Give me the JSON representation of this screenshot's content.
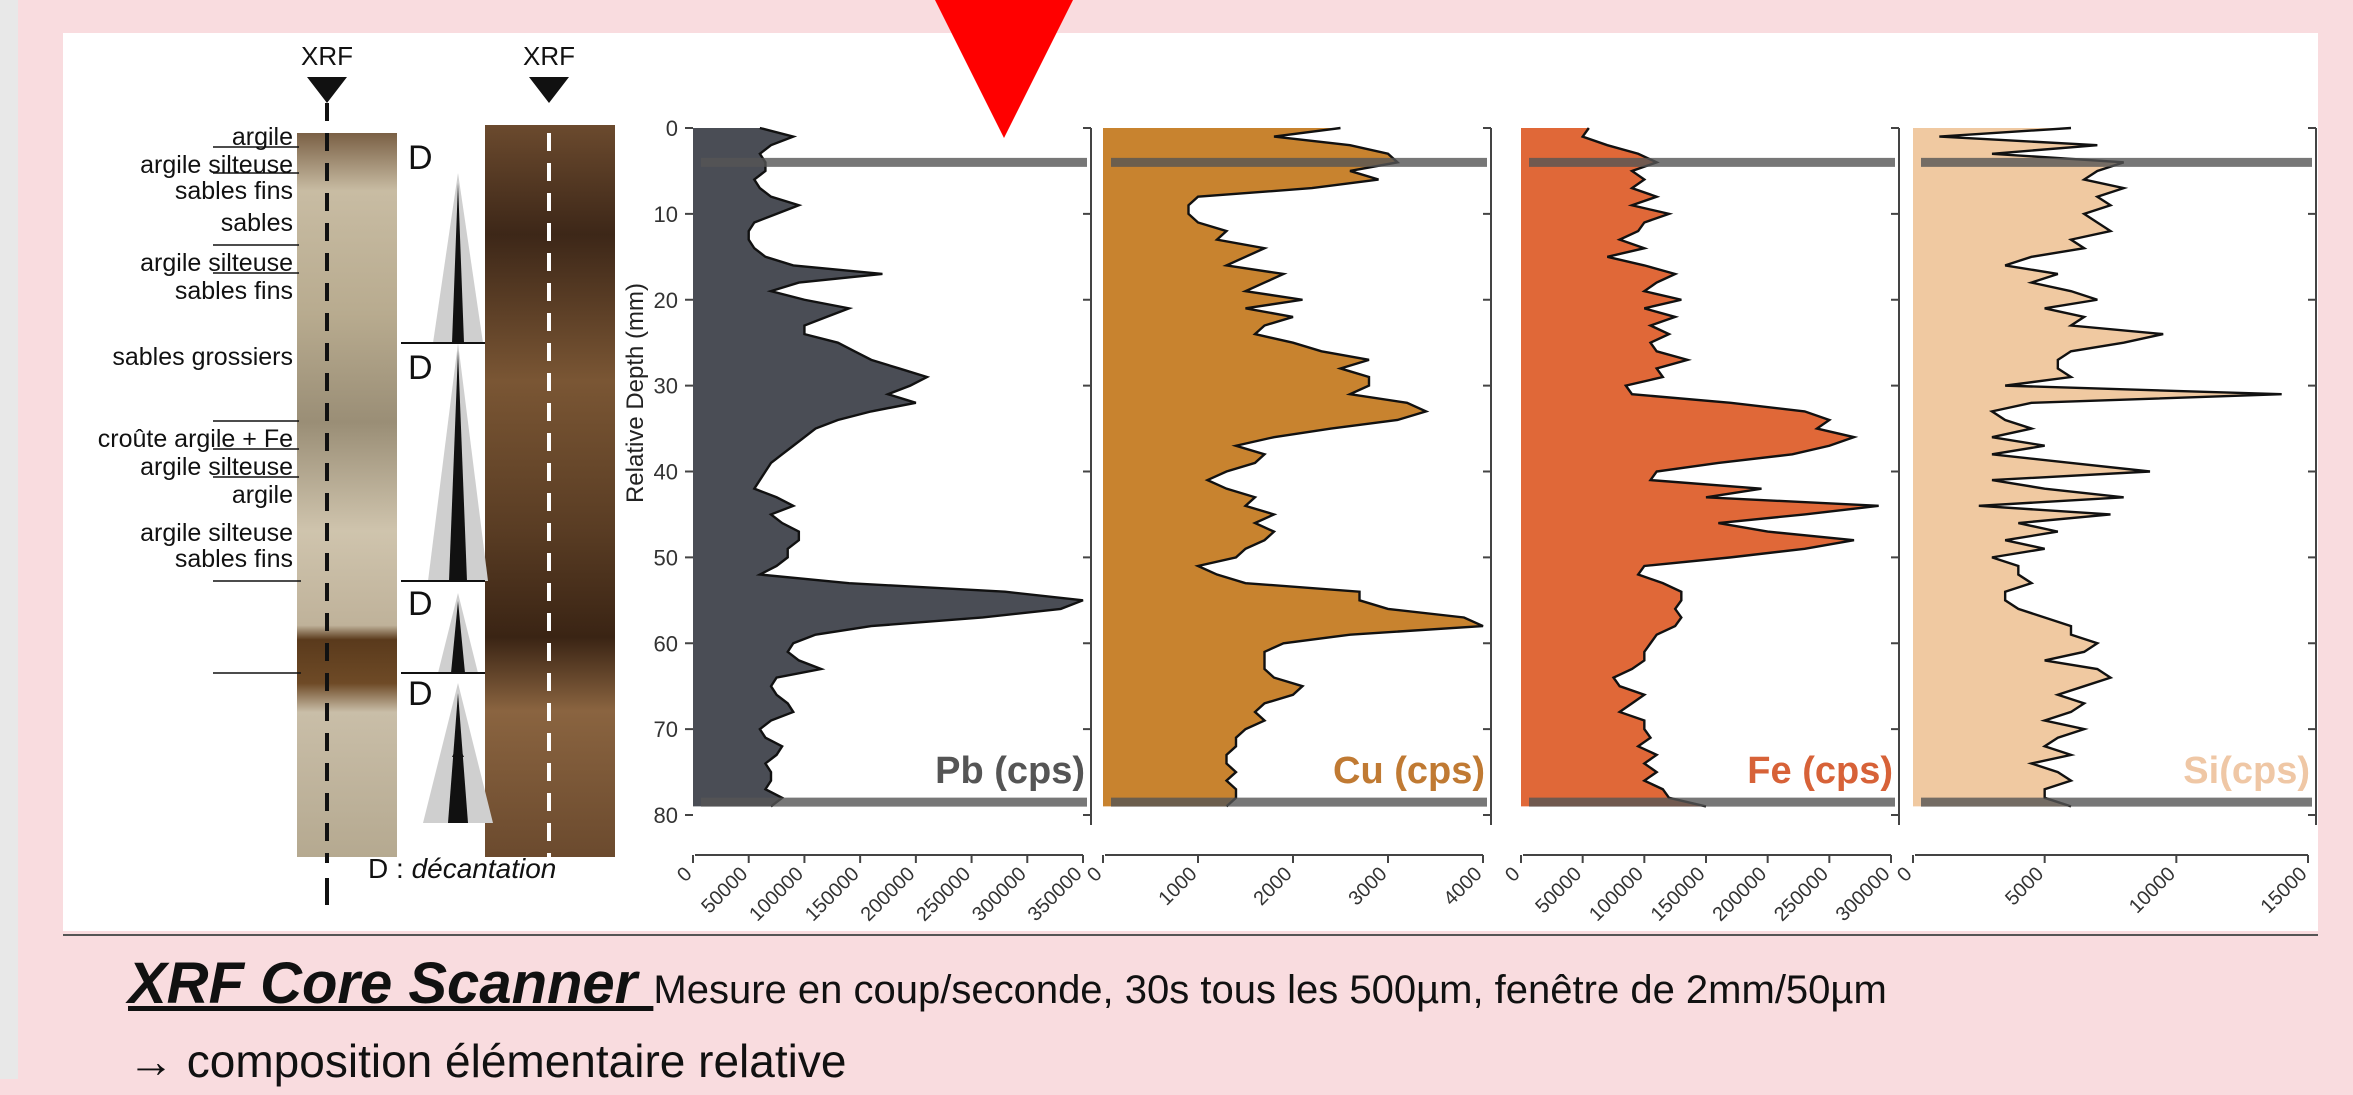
{
  "core": {
    "xrf_label_left": "XRF",
    "xrf_label_right": "XRF",
    "layers": [
      {
        "label": "argile"
      },
      {
        "label": "argile silteuse"
      },
      {
        "label": "sables fins"
      },
      {
        "label": "sables"
      },
      {
        "label": "argile silteuse"
      },
      {
        "label": "sables fins"
      },
      {
        "label": "sables grossiers"
      },
      {
        "label": "croûte argile + Fe"
      },
      {
        "label": "argile silteuse"
      },
      {
        "label": "argile"
      },
      {
        "label": "argile silteuse"
      },
      {
        "label": "sables fins"
      }
    ],
    "decantation_marks": [
      "D",
      "D",
      "D",
      "D"
    ],
    "legend_prefix": "D : ",
    "legend_term": "décantation"
  },
  "chart_data": {
    "type": "area",
    "ylabel": "Relative Depth (mm)",
    "ylim": [
      0,
      80
    ],
    "yticks": [
      0,
      10,
      20,
      30,
      40,
      50,
      60,
      70,
      80
    ],
    "reference_depths": [
      4,
      78.5
    ],
    "depth": [
      0,
      1,
      2,
      3,
      4,
      5,
      6,
      7,
      8,
      9,
      10,
      11,
      12,
      13,
      14,
      15,
      16,
      17,
      18,
      19,
      20,
      21,
      22,
      23,
      24,
      25,
      26,
      27,
      28,
      29,
      30,
      31,
      32,
      33,
      34,
      35,
      36,
      37,
      38,
      39,
      40,
      41,
      42,
      43,
      44,
      45,
      46,
      47,
      48,
      49,
      50,
      51,
      52,
      53,
      54,
      55,
      56,
      57,
      58,
      59,
      60,
      61,
      62,
      63,
      64,
      65,
      66,
      67,
      68,
      69,
      70,
      71,
      72,
      73,
      74,
      75,
      76,
      77,
      78,
      79
    ],
    "panels": [
      {
        "label": "Pb (cps)",
        "color": "#4a4d55",
        "label_color": "#555555",
        "xlim": [
          0,
          350000
        ],
        "xticks": [
          "0",
          "50000",
          "100000",
          "150000",
          "200000",
          "250000",
          "300000",
          "350000"
        ],
        "values": [
          60000,
          90000,
          70000,
          60000,
          65000,
          65000,
          55000,
          60000,
          70000,
          95000,
          75000,
          55000,
          50000,
          50000,
          55000,
          65000,
          90000,
          170000,
          95000,
          70000,
          100000,
          140000,
          120000,
          100000,
          100000,
          130000,
          145000,
          160000,
          185000,
          210000,
          195000,
          175000,
          200000,
          160000,
          130000,
          110000,
          100000,
          90000,
          80000,
          70000,
          65000,
          60000,
          55000,
          75000,
          90000,
          70000,
          80000,
          95000,
          95000,
          85000,
          85000,
          75000,
          60000,
          140000,
          280000,
          350000,
          330000,
          260000,
          160000,
          110000,
          90000,
          85000,
          95000,
          115000,
          75000,
          70000,
          75000,
          85000,
          90000,
          70000,
          60000,
          65000,
          80000,
          75000,
          65000,
          70000,
          70000,
          65000,
          80000,
          70000
        ]
      },
      {
        "label": "Cu (cps)",
        "color": "#c8832f",
        "label_color": "#c07a33",
        "xlim": [
          0,
          4000
        ],
        "xticks": [
          "0",
          "1000",
          "2000",
          "3000",
          "4000"
        ],
        "values": [
          2500,
          1800,
          2600,
          3000,
          3100,
          2600,
          2900,
          2200,
          1000,
          900,
          900,
          1000,
          1300,
          1200,
          1700,
          1500,
          1300,
          1900,
          1700,
          1500,
          2100,
          1500,
          2000,
          1700,
          1600,
          2000,
          2300,
          2800,
          2500,
          2800,
          2800,
          2600,
          3200,
          3400,
          3100,
          2400,
          1800,
          1400,
          1700,
          1600,
          1300,
          1100,
          1300,
          1600,
          1500,
          1800,
          1600,
          1800,
          1700,
          1500,
          1400,
          1000,
          1200,
          1500,
          2700,
          2700,
          3000,
          3800,
          4000,
          2600,
          1900,
          1700,
          1700,
          1700,
          1800,
          2100,
          2000,
          1700,
          1600,
          1700,
          1500,
          1400,
          1400,
          1300,
          1300,
          1400,
          1300,
          1400,
          1400,
          1300
        ]
      },
      {
        "label": "Fe (cps)",
        "color": "#e06838",
        "label_color": "#d76238",
        "xlim": [
          0,
          300000
        ],
        "xticks": [
          "0",
          "50000",
          "100000",
          "150000",
          "200000",
          "250000",
          "300000"
        ],
        "values": [
          55000,
          50000,
          70000,
          95000,
          110000,
          90000,
          100000,
          90000,
          110000,
          90000,
          120000,
          100000,
          95000,
          80000,
          100000,
          70000,
          100000,
          125000,
          110000,
          100000,
          130000,
          100000,
          125000,
          105000,
          120000,
          105000,
          110000,
          135000,
          110000,
          115000,
          85000,
          90000,
          170000,
          230000,
          250000,
          240000,
          270000,
          250000,
          220000,
          160000,
          110000,
          105000,
          195000,
          150000,
          290000,
          230000,
          160000,
          200000,
          270000,
          230000,
          170000,
          100000,
          95000,
          115000,
          130000,
          130000,
          125000,
          130000,
          125000,
          110000,
          105000,
          100000,
          100000,
          90000,
          75000,
          80000,
          100000,
          90000,
          80000,
          100000,
          100000,
          105000,
          95000,
          110000,
          100000,
          110000,
          100000,
          115000,
          120000,
          150000
        ]
      },
      {
        "label": "Si(cps)",
        "color": "#f0c9a1",
        "label_color": "#efc7a5",
        "xlim": [
          0,
          15000
        ],
        "xticks": [
          "0",
          "5000",
          "10000",
          "15000"
        ],
        "values": [
          6000,
          1000,
          7000,
          3000,
          8000,
          7000,
          6500,
          8000,
          7000,
          7500,
          6500,
          7000,
          7500,
          6000,
          6500,
          4500,
          3500,
          5500,
          4500,
          6000,
          7000,
          5000,
          6500,
          6000,
          9500,
          8000,
          6000,
          5500,
          5500,
          6000,
          3500,
          14000,
          4500,
          3000,
          3500,
          4500,
          3000,
          5000,
          3000,
          6000,
          9000,
          3000,
          5000,
          8000,
          2500,
          7500,
          4000,
          5500,
          3500,
          5000,
          3000,
          4000,
          4000,
          4500,
          3500,
          3500,
          4000,
          5000,
          6000,
          6000,
          7000,
          6500,
          5000,
          7000,
          7500,
          6500,
          5500,
          6500,
          6000,
          5000,
          6500,
          5500,
          5000,
          6000,
          4500,
          5500,
          6000,
          5000,
          5000,
          6000
        ]
      }
    ]
  },
  "caption": {
    "tool": "XRF Core Scanner ",
    "measure": "Mesure en coup/seconde, 30s tous les 500µm, fenêtre de 2mm/50µm",
    "result": "→ composition élémentaire relative"
  },
  "colors": {
    "background": "#f9dcdf",
    "marker": "#ff0000"
  }
}
